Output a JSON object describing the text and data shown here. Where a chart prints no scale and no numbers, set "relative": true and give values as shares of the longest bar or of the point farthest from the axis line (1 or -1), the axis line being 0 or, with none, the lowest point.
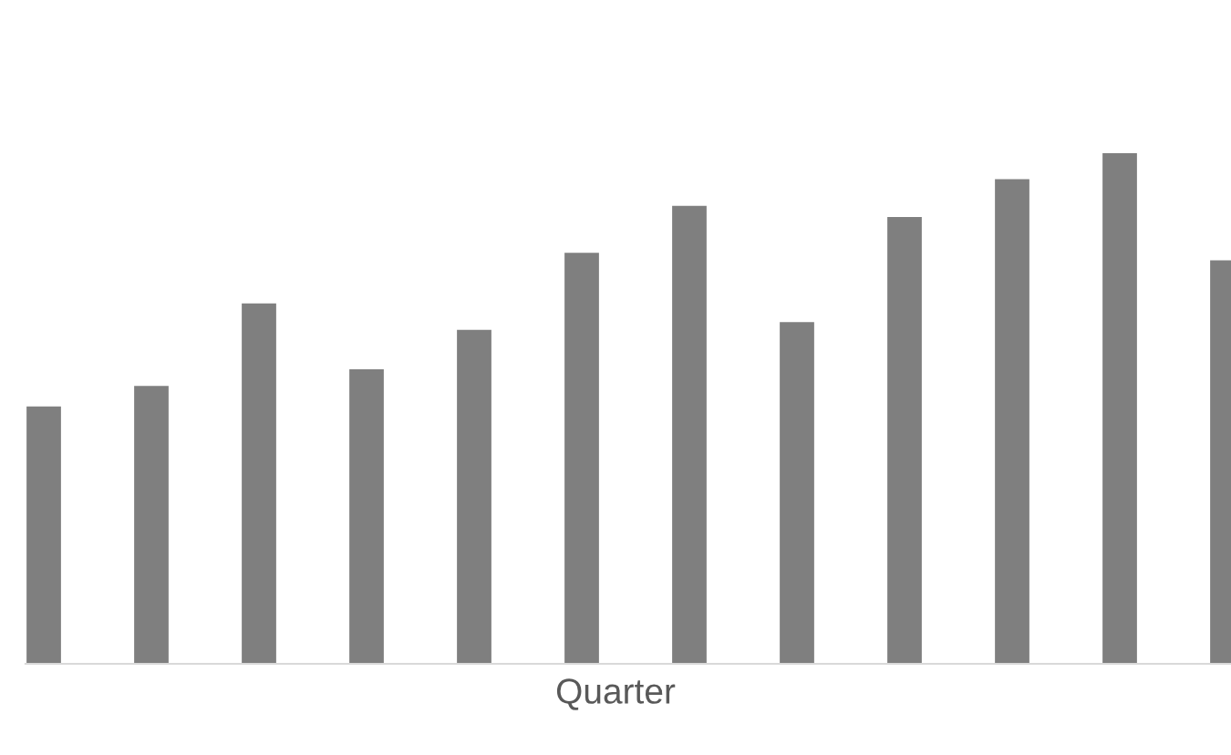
{
  "chart_data": {
    "type": "bar",
    "relative": true,
    "xlabel": "Quarter",
    "categories": [
      null,
      null,
      null,
      null,
      null,
      null,
      null,
      null,
      null,
      null,
      null,
      null
    ],
    "values": [
      0.504,
      0.544,
      0.706,
      0.577,
      0.654,
      0.805,
      0.897,
      0.669,
      0.875,
      0.949,
      1,
      0.79
    ],
    "color": "#7f7f7f",
    "grid": false,
    "legend": false
  }
}
